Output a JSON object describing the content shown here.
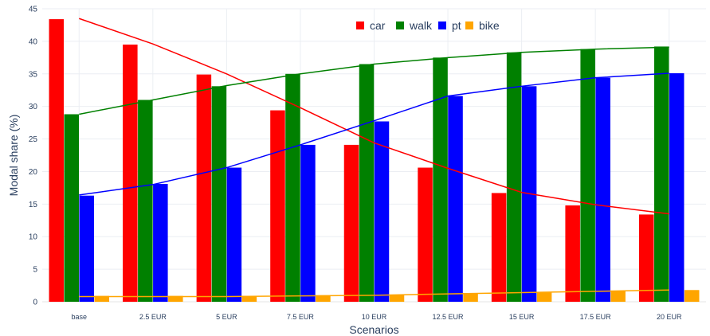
{
  "chart_data": {
    "type": "bar",
    "xlabel": "Scenarios",
    "ylabel": "Modal share (%)",
    "ylim": [
      0,
      45
    ],
    "yticks": [
      0,
      5,
      10,
      15,
      20,
      25,
      30,
      35,
      40,
      45
    ],
    "grid": true,
    "legend_position": "top-center",
    "categories": [
      "base",
      "2.5 EUR",
      "5 EUR",
      "7.5 EUR",
      "10 EUR",
      "12.5 EUR",
      "15 EUR",
      "17.5 EUR",
      "20 EUR"
    ],
    "series": [
      {
        "name": "car",
        "color": "#ff0000",
        "values": [
          43.4,
          39.5,
          34.9,
          29.4,
          24.1,
          20.6,
          16.7,
          14.8,
          13.4
        ],
        "trend": [
          43.5,
          39.6,
          35.0,
          29.8,
          24.4,
          20.5,
          16.8,
          14.9,
          13.5
        ]
      },
      {
        "name": "walk",
        "color": "#008000",
        "values": [
          28.8,
          31.0,
          33.1,
          35.0,
          36.5,
          37.5,
          38.3,
          38.8,
          39.2
        ],
        "trend": [
          28.8,
          31.0,
          33.2,
          35.0,
          36.5,
          37.5,
          38.3,
          38.8,
          39.1
        ]
      },
      {
        "name": "pt",
        "color": "#0000ff",
        "values": [
          16.3,
          18.1,
          20.6,
          24.1,
          27.7,
          31.6,
          33.1,
          34.4,
          35.1
        ],
        "trend": [
          16.4,
          18.0,
          20.6,
          24.1,
          27.8,
          31.6,
          33.1,
          34.4,
          35.1
        ]
      },
      {
        "name": "bike",
        "color": "#ffa500",
        "values": [
          0.9,
          0.9,
          0.9,
          1.0,
          1.1,
          1.3,
          1.4,
          1.6,
          1.8
        ],
        "trend": [
          0.8,
          0.8,
          0.8,
          0.9,
          1.0,
          1.2,
          1.4,
          1.6,
          1.8
        ]
      }
    ]
  }
}
